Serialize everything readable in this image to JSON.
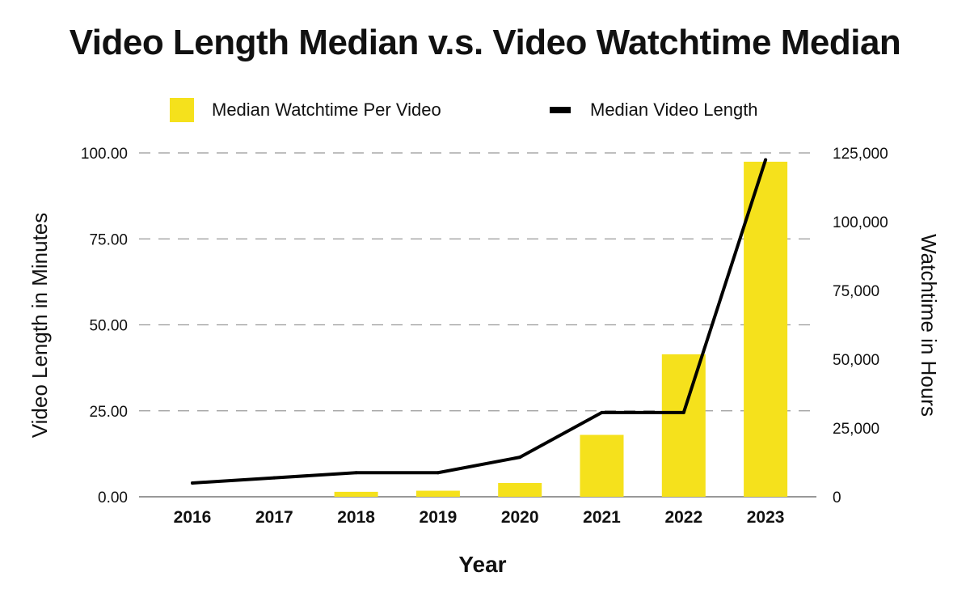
{
  "chart_data": {
    "type": "bar",
    "title": "Video Length Median v.s. Video Watchtime Median",
    "xlabel": "Year",
    "ylabel_left": "Video Length in Minutes",
    "ylabel_right": "Watchtime in Hours",
    "categories": [
      "2016",
      "2017",
      "2018",
      "2019",
      "2020",
      "2021",
      "2022",
      "2023"
    ],
    "left_axis": {
      "ylim": [
        0,
        100
      ],
      "ticks": [
        "0.00",
        "25.00",
        "50.00",
        "75.00",
        "100.00"
      ],
      "tick_values": [
        0,
        25,
        50,
        75,
        100
      ]
    },
    "right_axis": {
      "ylim": [
        0,
        125000
      ],
      "ticks": [
        "0",
        "25,000",
        "50,000",
        "75,000",
        "100,000",
        "125,000"
      ],
      "tick_values": [
        0,
        25000,
        50000,
        75000,
        100000,
        125000
      ]
    },
    "series": [
      {
        "name": "Median Watchtime Per Video",
        "kind": "bar",
        "axis": "right",
        "color": "#F5E11C",
        "values": [
          0,
          0,
          1800,
          2200,
          5000,
          22500,
          51800,
          121800
        ]
      },
      {
        "name": "Median Video Length",
        "kind": "line",
        "axis": "left",
        "color": "#000000",
        "values": [
          4,
          5.5,
          7,
          7,
          11.5,
          24.5,
          24.5,
          98
        ]
      }
    ],
    "grid": "horizontal dashed",
    "legend_position": "top-center"
  }
}
